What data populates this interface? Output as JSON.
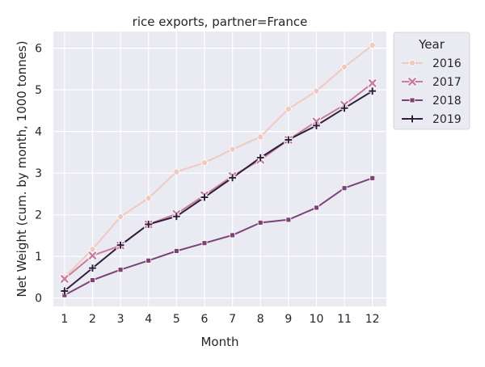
{
  "chart_data": {
    "type": "line",
    "title": "rice exports, partner=France",
    "xlabel": "Month",
    "ylabel": "Net Weight (cum. by month, 1000 tonnes)",
    "x": [
      1,
      2,
      3,
      4,
      5,
      6,
      7,
      8,
      9,
      10,
      11,
      12
    ],
    "xlim": [
      0.6,
      12.5
    ],
    "ylim": [
      -0.2,
      6.4
    ],
    "yticks": [
      0,
      1,
      2,
      3,
      4,
      5,
      6
    ],
    "grid": true,
    "legend": {
      "title": "Year",
      "placement": "outside-top-right"
    },
    "series": [
      {
        "name": "2016",
        "color": "#f0c9c0",
        "marker": "circle",
        "values": [
          0.5,
          1.17,
          1.95,
          2.4,
          3.03,
          3.25,
          3.57,
          3.87,
          4.54,
          4.97,
          5.55,
          6.07
        ]
      },
      {
        "name": "2017",
        "color": "#cb7b9b",
        "marker": "x",
        "values": [
          0.46,
          1.02,
          1.26,
          1.77,
          2.02,
          2.47,
          2.93,
          3.32,
          3.8,
          4.24,
          4.64,
          5.16
        ]
      },
      {
        "name": "2018",
        "color": "#7d4278",
        "marker": "square",
        "values": [
          0.07,
          0.43,
          0.68,
          0.9,
          1.13,
          1.32,
          1.51,
          1.81,
          1.88,
          2.17,
          2.64,
          2.88
        ]
      },
      {
        "name": "2019",
        "color": "#2d1e3e",
        "marker": "plus",
        "values": [
          0.17,
          0.72,
          1.27,
          1.77,
          1.96,
          2.42,
          2.89,
          3.37,
          3.8,
          4.14,
          4.56,
          4.97
        ]
      }
    ]
  }
}
